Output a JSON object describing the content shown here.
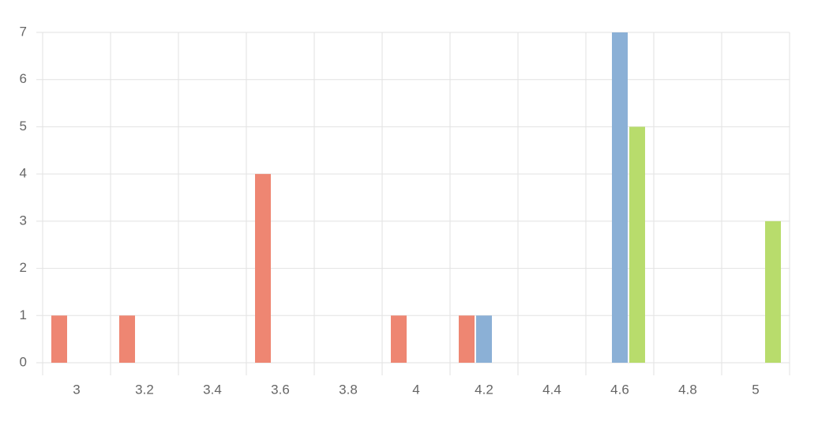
{
  "chart_data": {
    "type": "bar",
    "categories": [
      "3",
      "3.2",
      "3.4",
      "3.6",
      "3.8",
      "4",
      "4.2",
      "4.4",
      "4.6",
      "4.8",
      "5"
    ],
    "series": [
      {
        "color": "#ee8672",
        "values": [
          1,
          1,
          0,
          4,
          0,
          1,
          1,
          0,
          0,
          0,
          0
        ]
      },
      {
        "color": "#8bb0d6",
        "values": [
          0,
          0,
          0,
          0,
          0,
          0,
          1,
          0,
          7,
          0,
          0
        ]
      },
      {
        "color": "#b8dc6c",
        "values": [
          0,
          0,
          0,
          0,
          0,
          0,
          0,
          0,
          5,
          0,
          3
        ]
      }
    ],
    "ylim": [
      0,
      7
    ],
    "yticks": [
      0,
      1,
      2,
      3,
      4,
      5,
      6,
      7
    ],
    "grid": true
  }
}
